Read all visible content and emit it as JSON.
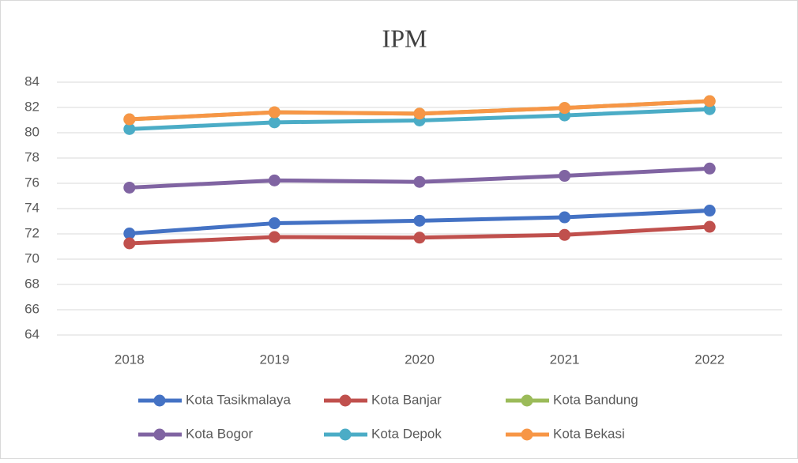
{
  "chart_data": {
    "type": "line",
    "title": "IPM",
    "categories": [
      "2018",
      "2019",
      "2020",
      "2021",
      "2022"
    ],
    "series": [
      {
        "name": "Kota Tasikmalaya",
        "color": "#4472c4",
        "values": [
          72.03,
          72.84,
          73.04,
          73.31,
          73.84
        ]
      },
      {
        "name": "Kota Banjar",
        "color": "#c0504d",
        "values": [
          71.25,
          71.75,
          71.7,
          71.92,
          72.56
        ]
      },
      {
        "name": "Kota Bandung",
        "color": "#9bbb59",
        "values": [
          81.06,
          81.62,
          81.51,
          81.96,
          82.5
        ]
      },
      {
        "name": "Kota Bogor",
        "color": "#8064a2",
        "values": [
          75.66,
          76.23,
          76.11,
          76.59,
          77.17
        ]
      },
      {
        "name": "Kota Depok",
        "color": "#4bacc6",
        "values": [
          80.29,
          80.82,
          80.97,
          81.37,
          81.86
        ]
      },
      {
        "name": "Kota Bekasi",
        "color": "#f79646",
        "values": [
          81.06,
          81.62,
          81.51,
          81.96,
          82.5
        ]
      }
    ],
    "ylim": [
      64,
      84
    ],
    "yticks": [
      64,
      66,
      68,
      70,
      72,
      74,
      76,
      78,
      80,
      82,
      84
    ],
    "grid": true
  }
}
